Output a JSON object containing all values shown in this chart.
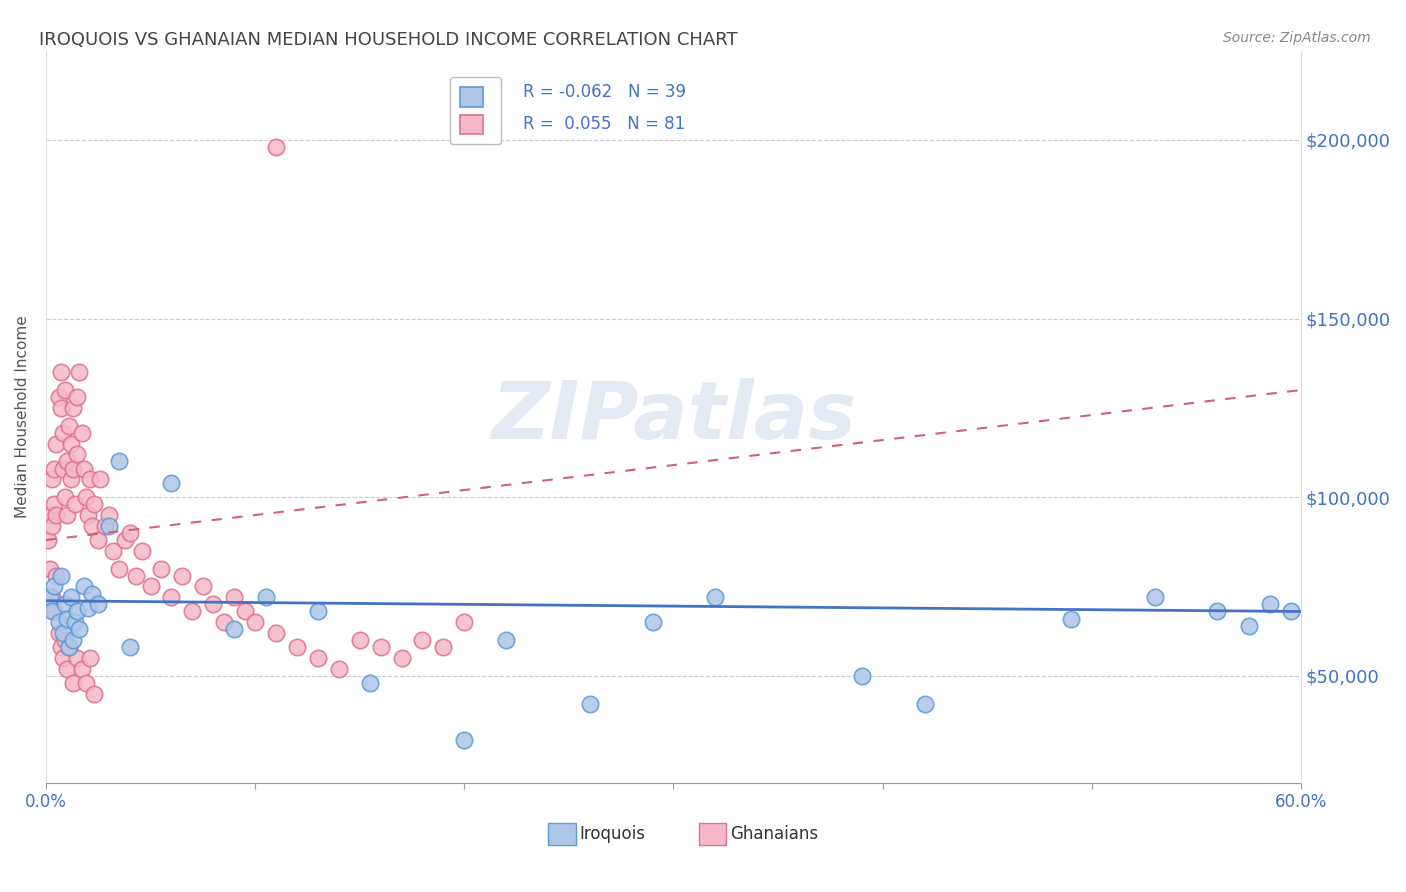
{
  "title": "IROQUOIS VS GHANAIAN MEDIAN HOUSEHOLD INCOME CORRELATION CHART",
  "source": "Source: ZipAtlas.com",
  "ylabel": "Median Household Income",
  "xlim": [
    0.0,
    0.6
  ],
  "ylim": [
    20000,
    225000
  ],
  "yticks": [
    50000,
    100000,
    150000,
    200000
  ],
  "ytick_labels": [
    "$50,000",
    "$100,000",
    "$150,000",
    "$200,000"
  ],
  "color_iroquois_fill": "#aec6e8",
  "color_iroquois_edge": "#5b9bd5",
  "color_ghanaians_fill": "#f4b8c8",
  "color_ghanaians_edge": "#e07090",
  "color_iroquois_line": "#4472c4",
  "color_ghanaians_line": "#d46070",
  "R_iroquois": -0.062,
  "R_ghanaians": 0.055,
  "background_color": "#ffffff",
  "grid_color": "#cccccc",
  "watermark": "ZIPatlas",
  "legend_line1_r": "R = -0.062",
  "legend_line1_n": "N = 39",
  "legend_line2_r": "R =  0.055",
  "legend_line2_n": "N = 81",
  "iroquois_x": [
    0.002,
    0.003,
    0.004,
    0.006,
    0.007,
    0.008,
    0.009,
    0.01,
    0.011,
    0.012,
    0.013,
    0.014,
    0.015,
    0.016,
    0.018,
    0.02,
    0.022,
    0.025,
    0.03,
    0.035,
    0.04,
    0.06,
    0.09,
    0.105,
    0.13,
    0.155,
    0.2,
    0.22,
    0.26,
    0.29,
    0.32,
    0.39,
    0.42,
    0.49,
    0.53,
    0.56,
    0.575,
    0.585,
    0.595
  ],
  "iroquois_y": [
    72000,
    68000,
    75000,
    65000,
    78000,
    62000,
    70000,
    66000,
    58000,
    72000,
    60000,
    65000,
    68000,
    63000,
    75000,
    69000,
    73000,
    70000,
    92000,
    110000,
    58000,
    104000,
    63000,
    72000,
    68000,
    48000,
    32000,
    60000,
    42000,
    65000,
    72000,
    50000,
    42000,
    66000,
    72000,
    68000,
    64000,
    70000,
    68000
  ],
  "ghanaians_x": [
    0.001,
    0.002,
    0.003,
    0.003,
    0.004,
    0.004,
    0.005,
    0.005,
    0.006,
    0.007,
    0.007,
    0.008,
    0.008,
    0.009,
    0.009,
    0.01,
    0.01,
    0.011,
    0.012,
    0.012,
    0.013,
    0.013,
    0.014,
    0.015,
    0.015,
    0.016,
    0.017,
    0.018,
    0.019,
    0.02,
    0.021,
    0.022,
    0.023,
    0.025,
    0.026,
    0.028,
    0.03,
    0.032,
    0.035,
    0.038,
    0.04,
    0.043,
    0.046,
    0.05,
    0.055,
    0.06,
    0.065,
    0.07,
    0.075,
    0.08,
    0.085,
    0.09,
    0.095,
    0.1,
    0.11,
    0.12,
    0.13,
    0.14,
    0.15,
    0.16,
    0.17,
    0.18,
    0.19,
    0.2,
    0.002,
    0.003,
    0.004,
    0.005,
    0.006,
    0.007,
    0.008,
    0.009,
    0.01,
    0.011,
    0.013,
    0.015,
    0.017,
    0.019,
    0.021,
    0.023,
    0.11
  ],
  "ghanaians_y": [
    88000,
    95000,
    92000,
    105000,
    108000,
    98000,
    115000,
    95000,
    128000,
    125000,
    135000,
    118000,
    108000,
    130000,
    100000,
    110000,
    95000,
    120000,
    105000,
    115000,
    108000,
    125000,
    98000,
    112000,
    128000,
    135000,
    118000,
    108000,
    100000,
    95000,
    105000,
    92000,
    98000,
    88000,
    105000,
    92000,
    95000,
    85000,
    80000,
    88000,
    90000,
    78000,
    85000,
    75000,
    80000,
    72000,
    78000,
    68000,
    75000,
    70000,
    65000,
    72000,
    68000,
    65000,
    62000,
    58000,
    55000,
    52000,
    60000,
    58000,
    55000,
    60000,
    58000,
    65000,
    80000,
    72000,
    68000,
    78000,
    62000,
    58000,
    55000,
    60000,
    52000,
    58000,
    48000,
    55000,
    52000,
    48000,
    55000,
    45000,
    198000
  ]
}
